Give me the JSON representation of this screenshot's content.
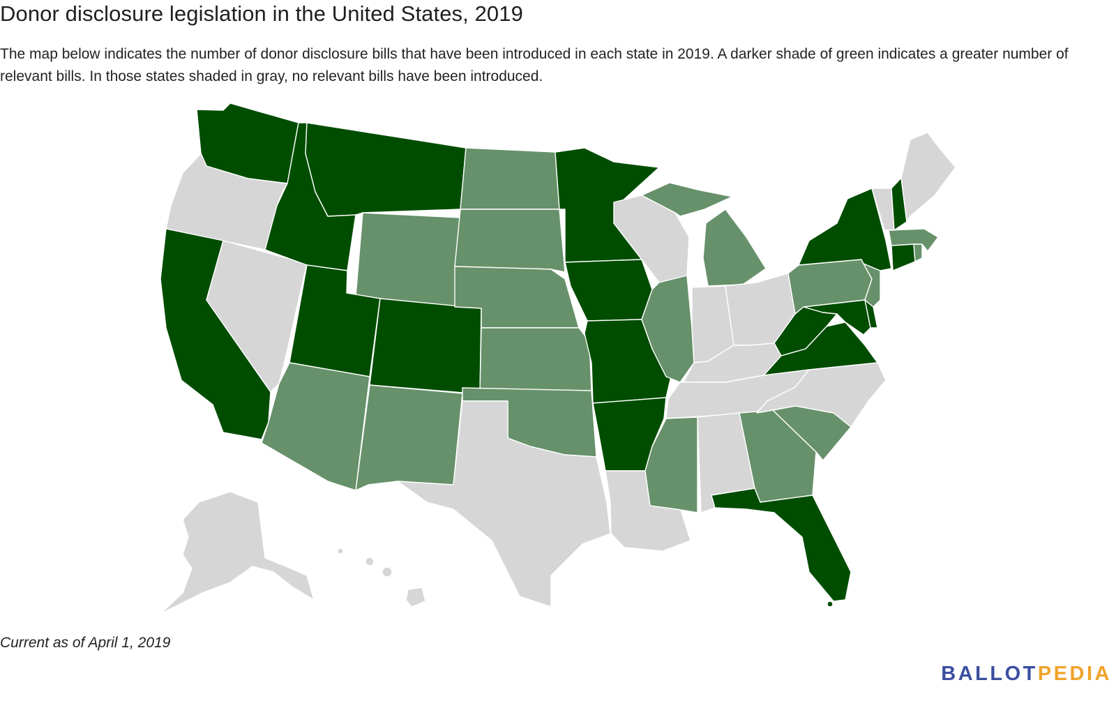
{
  "header": {
    "title": "Donor disclosure legislation in the United States, 2019",
    "subtitle": "The map below indicates the number of donor disclosure bills that have been introduced in each state in 2019. A darker shade of green indicates a greater number of relevant bills. In those states shaded in gray, no relevant bills have been introduced."
  },
  "footer": {
    "note": "Current as of April 1, 2019",
    "logo_part1": "BALLOT",
    "logo_part2": "PEDIA"
  },
  "colors": {
    "dark": "#004d00",
    "medium": "#66916a",
    "none": "#d6d6d6",
    "logo_blue": "#3b4ea0",
    "logo_orange": "#f0a32a"
  },
  "map_data": {
    "dark": [
      "WA",
      "ID",
      "MT",
      "CA",
      "UT",
      "CO",
      "MN",
      "IA",
      "MO",
      "AR",
      "NY",
      "NH",
      "CT",
      "WV",
      "VA",
      "MD",
      "DE",
      "FL"
    ],
    "medium": [
      "ND",
      "SD",
      "WY",
      "NE",
      "KS",
      "OK",
      "AZ",
      "NM",
      "MI",
      "IL",
      "MS",
      "GA",
      "SC",
      "PA",
      "NJ",
      "MA",
      "RI"
    ],
    "none": [
      "OR",
      "NV",
      "TX",
      "LA",
      "WI",
      "IN",
      "OH",
      "KY",
      "TN",
      "AL",
      "NC",
      "ME",
      "VT",
      "AK",
      "HI"
    ]
  }
}
